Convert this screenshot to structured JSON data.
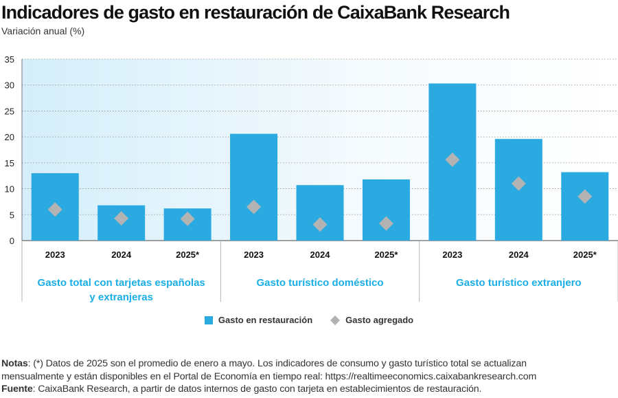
{
  "chart_data": {
    "type": "bar",
    "title": "Indicadores de gasto en restauración de CaixaBank Research",
    "subtitle": "Variación anual (%)",
    "ylim": [
      0,
      35
    ],
    "yticks": [
      0,
      5,
      10,
      15,
      20,
      25,
      30,
      35
    ],
    "grid": true,
    "groups": [
      {
        "name": "Gasto total con tarjetas españolas y extranjeras",
        "name_lines": [
          "Gasto total con tarjetas españolas",
          "y extranjeras"
        ]
      },
      {
        "name": "Gasto turístico doméstico",
        "name_lines": [
          "Gasto turístico doméstico"
        ]
      },
      {
        "name": "Gasto turístico extranjero",
        "name_lines": [
          "Gasto turístico extranjero"
        ]
      }
    ],
    "categories": [
      "2023",
      "2024",
      "2025*",
      "2023",
      "2024",
      "2025*",
      "2023",
      "2024",
      "2025*"
    ],
    "series": [
      {
        "name": "Gasto en restauración",
        "kind": "bar",
        "color": "#2baae2",
        "values": [
          13.0,
          6.8,
          6.2,
          20.6,
          10.7,
          11.8,
          30.3,
          19.6,
          13.2
        ]
      },
      {
        "name": "Gasto agregado",
        "kind": "diamond",
        "color": "#b3b3b3",
        "values": [
          6.0,
          4.3,
          4.2,
          6.5,
          3.1,
          3.3,
          15.6,
          11.0,
          8.5
        ]
      }
    ],
    "legend_position": "bottom"
  },
  "notes": {
    "notas_label": "Notas",
    "notas_text": ": (*) Datos de 2025 son el promedio de enero a mayo. Los indicadores de consumo y gasto turístico total se actualizan",
    "notas_line2": "mensualmente y están disponibles en el Portal de Economía en tiempo real: https://realtimeeconomics.caixabankresearch.com",
    "fuente_label": "Fuente",
    "fuente_text": ": CaixaBank Research, a partir de datos internos de gasto con tarjeta en establecimientos de restauración."
  }
}
